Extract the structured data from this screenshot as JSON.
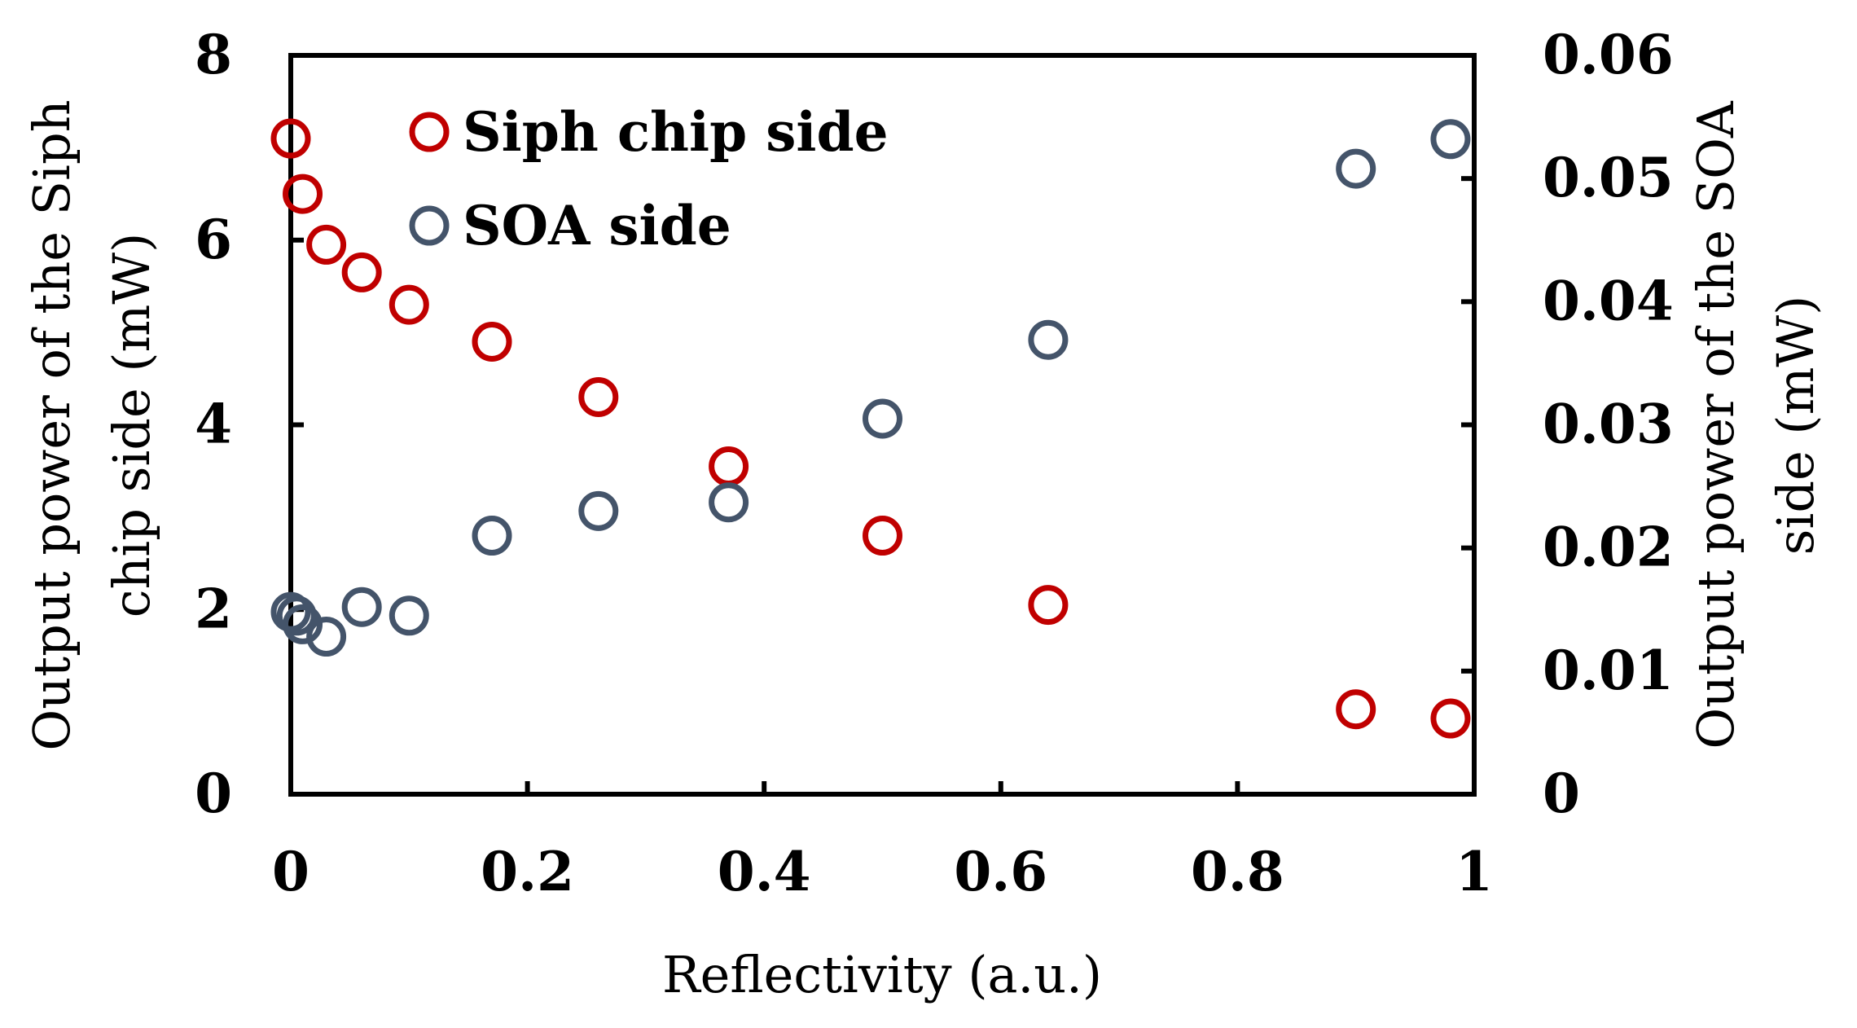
{
  "chart_data": {
    "type": "scatter",
    "xlabel": "Reflectivity (a.u.)",
    "ylabel_left": [
      "Output power of the Siph",
      "chip side (mW)"
    ],
    "ylabel_right": [
      "Output power of the SOA",
      "side (mW)"
    ],
    "xlim": [
      0,
      1
    ],
    "ylim_left": [
      0,
      8
    ],
    "ylim_right": [
      0,
      0.06
    ],
    "x_ticks": [
      "0",
      "0.2",
      "0.4",
      "0.6",
      "0.8",
      "1"
    ],
    "x_tick_values": [
      0,
      0.2,
      0.4,
      0.6,
      0.8,
      1
    ],
    "y_left_ticks": [
      "0",
      "2",
      "4",
      "6",
      "8"
    ],
    "y_left_tick_values": [
      0,
      2,
      4,
      6,
      8
    ],
    "y_right_ticks": [
      "0",
      "0.01",
      "0.02",
      "0.03",
      "0.04",
      "0.05",
      "0.06"
    ],
    "y_right_tick_values": [
      0,
      0.01,
      0.02,
      0.03,
      0.04,
      0.05,
      0.06
    ],
    "grid": false,
    "legend_position": "top-left",
    "series": [
      {
        "name": "Siph chip side",
        "axis": "left",
        "color": "#C00000",
        "x": [
          0.0,
          0.01,
          0.03,
          0.06,
          0.1,
          0.17,
          0.26,
          0.37,
          0.5,
          0.64,
          0.9,
          0.98
        ],
        "y": [
          7.1,
          6.5,
          5.95,
          5.65,
          5.3,
          4.9,
          4.3,
          3.55,
          2.8,
          2.05,
          0.92,
          0.82
        ]
      },
      {
        "name": "SOA side",
        "axis": "right",
        "color": "#44546A",
        "x": [
          0.0,
          0.005,
          0.01,
          0.03,
          0.06,
          0.1,
          0.17,
          0.26,
          0.37,
          0.5,
          0.64,
          0.9,
          0.98
        ],
        "y": [
          0.0148,
          0.0145,
          0.0138,
          0.0128,
          0.0152,
          0.0145,
          0.021,
          0.023,
          0.0237,
          0.0305,
          0.0369,
          0.0508,
          0.0532
        ]
      }
    ]
  }
}
